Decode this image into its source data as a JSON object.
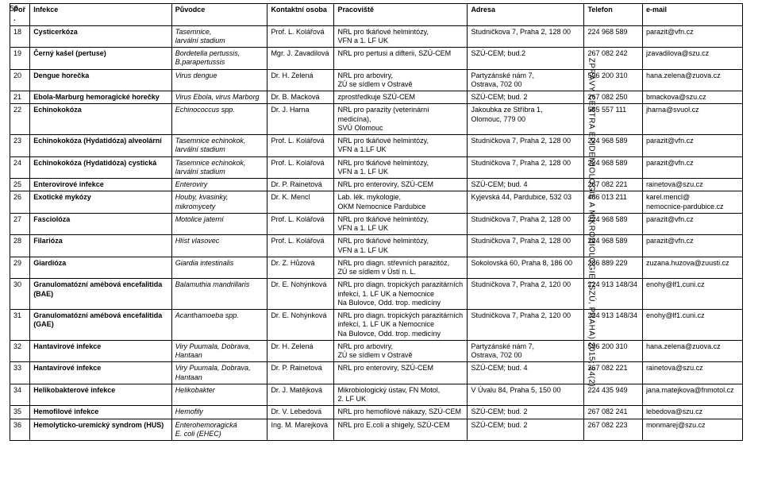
{
  "page_number": "56",
  "side_text": "ZPRÁVY CENTRA EPIDEMIOLOGIE A MIKROBIOLOGIE (SZÚ, PRAHA) 2015; 24(2)",
  "columns": [
    "Poř.",
    "Infekce",
    "Původce",
    "Kontaktní osoba",
    "Pracoviště",
    "Adresa",
    "Telefon",
    "e-mail"
  ],
  "rows": [
    {
      "c": [
        "18",
        "Cysticerkóza",
        "Tasemnice,\nlarvální stadium",
        "Prof. L. Kolářová",
        "NRL pro tkáňové helmintózy,\nVFN a 1. LF UK",
        "Studničkova 7, Praha 2, 128 00",
        "224 968 589",
        "parazit@vfn.cz"
      ]
    },
    {
      "c": [
        "19",
        "Černý kašel (pertuse)",
        "Bordetella pertussis,\nB.parapertussis",
        "Mgr. J. Zavadilová",
        "NRL pro pertusi a difterii, SZÚ-CEM",
        "SZÚ-CEM; bud.2",
        "267 082 242",
        "jzavadilova@szu.cz"
      ]
    },
    {
      "c": [
        "20",
        "Dengue horečka",
        "Virus dengue",
        "Dr. H. Zelená",
        "NRL pro arboviry,\nZÚ se sídlem v Ostravě",
        "Partyzánské nám 7,\nOstrava, 702 00",
        "596 200 310",
        "hana.zelena@zuova.cz"
      ]
    },
    {
      "c": [
        "21",
        "Ebola-Marburg hemoragické horečky",
        "Virus Ebola, virus Marborg",
        "Dr. B. Macková",
        "zprostředkuje SZÚ-CEM",
        "SZÚ-CEM; bud. 2",
        "267 082 250",
        "bmackova@szu.cz"
      ]
    },
    {
      "c": [
        "22",
        "Echinokokóza",
        "Echinococcus spp.",
        "Dr. J. Harna",
        "NRL pro parazity (veterinární medicína),\nSVÚ Olomouc",
        "Jakoubka ze Stříbra 1,\nOlomouc, 779 00",
        "585 557 111",
        "jharna@svuol.cz"
      ]
    },
    {
      "c": [
        "23",
        "Echinokokóza (Hydatidóza) alveolární",
        "Tasemnice echinokok,\nlarvální stadium",
        "Prof. L. Kolářová",
        "NRL pro tkáňové helmintózy,\nVFN a 1.LF UK",
        "Studničkova 7, Praha 2, 128 00",
        "224 968 589",
        "parazit@vfn.cz"
      ]
    },
    {
      "c": [
        "24",
        "Echinokokóza (Hydatidóza) cystická",
        "Tasemnice echinokok,\nlarvální stadium",
        "Prof. L. Kolářová",
        "NRL pro tkáňové helmintózy,\nVFN a 1. LF UK",
        "Studničkova 7, Praha 2, 128 00",
        "224 968 589",
        "parazit@vfn.cz"
      ]
    },
    {
      "c": [
        "25",
        "Enterovirové infekce",
        "Enteroviry",
        "Dr. P. Rainetová",
        "NRL pro enteroviry, SZÚ-CEM",
        "SZÚ-CEM; bud. 4",
        "267 082 221",
        "rainetova@szu.cz"
      ]
    },
    {
      "c": [
        "26",
        "Exotické mykózy",
        "Houby, kvasinky,\nmikromycety",
        "Dr. K. Mencl",
        "Lab. lék. mykologie,\nOKM Nemocnice Pardubice",
        "Kyjevská 44, Pardubice, 532 03",
        "466 013 211",
        "karel.mencl@\nnemocnice-pardubice.cz"
      ]
    },
    {
      "c": [
        "27",
        "Fasciolóza",
        "Motolice jaterní",
        "Prof. L. Kolářová",
        "NRL pro tkáňové helmintózy,\nVFN a 1. LF UK",
        "Studničkova 7, Praha 2, 128 00",
        "224 968 589",
        "parazit@vfn.cz"
      ]
    },
    {
      "c": [
        "28",
        "Filarióza",
        "Hlíst vlasovec",
        "Prof. L. Kolářová",
        "NRL pro tkáňové helmintózy,\nVFN a 1. LF UK",
        "Studničkova 7, Praha 2, 128 00",
        "224 968 589",
        "parazit@vfn.cz"
      ]
    },
    {
      "c": [
        "29",
        "Giardióza",
        "Giardia intestinalis",
        "Dr. Z. Hůzová",
        "NRL pro diagn. střevních parazitóz,\nZÚ se sídlem v Ústí n. L.",
        "Sokolovská 60, Praha 8, 186 00",
        "286 889 229",
        "zuzana.huzova@zuusti.cz"
      ]
    },
    {
      "c": [
        "30",
        "Granulomatózní amébová encefalitida\n(BAE)",
        "Balamuthia mandrillaris",
        "Dr. E. Nohýnková",
        "NRL pro diagn. tropických parazitárních\ninfekcí, 1. LF UK a Nemocnice\nNa Bulovce, Odd. trop. medicíny",
        "Studničkova 7, Praha 2, 120 00",
        "224 913 148/34",
        "enohy@lf1.cuni.cz"
      ]
    },
    {
      "c": [
        "31",
        "Granulomatózní amébová encefalitida\n(GAE)",
        "Acanthamoeba spp.",
        "Dr. E. Nohýnková",
        "NRL pro diagn. tropických parazitárních\ninfekcí, 1. LF UK a Nemocnice\nNa Bulovce, Odd. trop. medicíny",
        "Studničkova 7, Praha 2, 120 00",
        "224 913 148/34",
        "enohy@lf1.cuni.cz"
      ]
    },
    {
      "c": [
        "32",
        "Hantavirové infekce",
        "Viry Puumala, Dobrava,\nHantaan",
        "Dr. H. Zelená",
        "NRL pro arboviry,\nZÚ se sídlem v Ostravě",
        "Partyzánské nám 7,\nOstrava, 702 00",
        "596 200 310",
        "hana.zelena@zuova.cz"
      ]
    },
    {
      "c": [
        "33",
        "Hantavirové infekce",
        "Viry Puumala, Dobrava,\nHantaan",
        "Dr. P. Rainetová",
        "NRL pro enteroviry, SZÚ-CEM",
        "SZÚ-CEM; bud. 4",
        "267 082 221",
        "rainetova@szu.cz"
      ]
    },
    {
      "c": [
        "34",
        "Helikobakterové infekce",
        "Helikobakter",
        "Dr. J. Matějková",
        "Mikrobiologický ústav, FN Motol,\n2. LF UK",
        "V Úvalu 84, Praha 5, 150 00",
        "224 435 949",
        "jana.matejkova@fnmotol.cz"
      ]
    },
    {
      "c": [
        "35",
        "Hemofilové infekce",
        "Hemofily",
        "Dr. V. Lebedová",
        "NRL pro hemofilové nákazy, SZÚ-CEM",
        "SZÚ-CEM; bud. 2",
        "267 082 241",
        "lebedova@szu.cz"
      ]
    },
    {
      "c": [
        "36",
        "Hemolyticko-uremický syndrom (HUS)",
        "Enterohemoragická\nE. coli (EHEC)",
        "Ing. M. Marejková",
        "NRL pro E.coli a shigely, SZÚ-CEM",
        "SZÚ-CEM; bud. 2",
        "267 082 223",
        "monmarej@szu.cz"
      ]
    }
  ],
  "italic_cols": [
    2
  ],
  "bold_cols": [
    1
  ]
}
